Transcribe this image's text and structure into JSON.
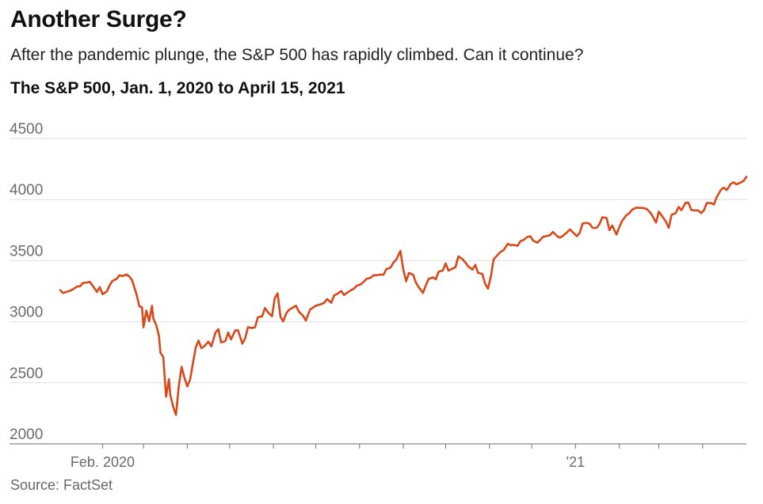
{
  "header": {
    "title": "Another Surge?",
    "subtitle": "After the pandemic plunge, the S&P 500 has rapidly climbed. Can it continue?",
    "chart_title": "The S&P 500, Jan. 1, 2020 to April 15, 2021"
  },
  "footer": {
    "source": "Source: FactSet"
  },
  "colors": {
    "line": "#d9481a",
    "grid": "#dedede",
    "axis": "#888888",
    "text": "#111111"
  },
  "chart_data": {
    "type": "line",
    "title": "The S&P 500, Jan. 1, 2020 to April 15, 2021",
    "xlabel": "",
    "ylabel": "",
    "ylim": [
      2000,
      4500
    ],
    "yticks": [
      2000,
      2500,
      3000,
      3500,
      4000,
      4500
    ],
    "xlim": [
      0,
      470
    ],
    "x_unit": "days since Jan. 1, 2020",
    "x_ticks": [
      31,
      60,
      91,
      121,
      152,
      182,
      213,
      244,
      274,
      305,
      335,
      366,
      397,
      425,
      456
    ],
    "x_tick_labels": [
      {
        "x": 31,
        "label": "Feb. 2020"
      },
      {
        "x": 366,
        "label": "'21"
      }
    ],
    "grid": true,
    "series": [
      {
        "name": "S&P 500",
        "points": [
          [
            1,
            3258
          ],
          [
            3,
            3235
          ],
          [
            6,
            3246
          ],
          [
            8,
            3254
          ],
          [
            10,
            3265
          ],
          [
            13,
            3288
          ],
          [
            15,
            3289
          ],
          [
            17,
            3317
          ],
          [
            20,
            3321
          ],
          [
            22,
            3326
          ],
          [
            24,
            3295
          ],
          [
            27,
            3244
          ],
          [
            29,
            3283
          ],
          [
            31,
            3225
          ],
          [
            34,
            3248
          ],
          [
            36,
            3298
          ],
          [
            38,
            3334
          ],
          [
            41,
            3352
          ],
          [
            43,
            3380
          ],
          [
            45,
            3373
          ],
          [
            48,
            3386
          ],
          [
            50,
            3370
          ],
          [
            52,
            3337
          ],
          [
            55,
            3226
          ],
          [
            57,
            3128
          ],
          [
            59,
            3116
          ],
          [
            60,
            2954
          ],
          [
            62,
            3090
          ],
          [
            64,
            3003
          ],
          [
            66,
            3130
          ],
          [
            67,
            3024
          ],
          [
            69,
            2972
          ],
          [
            71,
            2882
          ],
          [
            72,
            2746
          ],
          [
            74,
            2711
          ],
          [
            76,
            2386
          ],
          [
            78,
            2529
          ],
          [
            79,
            2398
          ],
          [
            81,
            2304
          ],
          [
            83,
            2237
          ],
          [
            85,
            2475
          ],
          [
            87,
            2630
          ],
          [
            89,
            2541
          ],
          [
            91,
            2470
          ],
          [
            93,
            2526
          ],
          [
            95,
            2660
          ],
          [
            97,
            2790
          ],
          [
            99,
            2846
          ],
          [
            101,
            2783
          ],
          [
            103,
            2799
          ],
          [
            106,
            2837
          ],
          [
            108,
            2797
          ],
          [
            111,
            2912
          ],
          [
            113,
            2939
          ],
          [
            115,
            2830
          ],
          [
            118,
            2842
          ],
          [
            120,
            2912
          ],
          [
            122,
            2855
          ],
          [
            125,
            2930
          ],
          [
            127,
            2929
          ],
          [
            130,
            2820
          ],
          [
            132,
            2863
          ],
          [
            134,
            2955
          ],
          [
            137,
            2948
          ],
          [
            139,
            2955
          ],
          [
            141,
            3036
          ],
          [
            144,
            3044
          ],
          [
            146,
            3112
          ],
          [
            148,
            3080
          ],
          [
            151,
            3044
          ],
          [
            153,
            3193
          ],
          [
            155,
            3232
          ],
          [
            157,
            3041
          ],
          [
            159,
            3002
          ],
          [
            161,
            3066
          ],
          [
            163,
            3097
          ],
          [
            166,
            3117
          ],
          [
            168,
            3131
          ],
          [
            170,
            3083
          ],
          [
            173,
            3050
          ],
          [
            175,
            3009
          ],
          [
            178,
            3100
          ],
          [
            180,
            3115
          ],
          [
            182,
            3130
          ],
          [
            186,
            3145
          ],
          [
            188,
            3155
          ],
          [
            190,
            3185
          ],
          [
            193,
            3155
          ],
          [
            195,
            3215
          ],
          [
            197,
            3226
          ],
          [
            200,
            3251
          ],
          [
            202,
            3218
          ],
          [
            204,
            3236
          ],
          [
            207,
            3258
          ],
          [
            209,
            3271
          ],
          [
            211,
            3294
          ],
          [
            214,
            3306
          ],
          [
            216,
            3327
          ],
          [
            218,
            3351
          ],
          [
            221,
            3360
          ],
          [
            223,
            3381
          ],
          [
            225,
            3380
          ],
          [
            228,
            3386
          ],
          [
            230,
            3385
          ],
          [
            232,
            3431
          ],
          [
            235,
            3443
          ],
          [
            237,
            3484
          ],
          [
            239,
            3508
          ],
          [
            242,
            3580
          ],
          [
            244,
            3426
          ],
          [
            246,
            3331
          ],
          [
            248,
            3399
          ],
          [
            251,
            3384
          ],
          [
            253,
            3319
          ],
          [
            255,
            3281
          ],
          [
            258,
            3236
          ],
          [
            260,
            3298
          ],
          [
            262,
            3351
          ],
          [
            265,
            3363
          ],
          [
            267,
            3348
          ],
          [
            269,
            3408
          ],
          [
            272,
            3420
          ],
          [
            274,
            3477
          ],
          [
            276,
            3419
          ],
          [
            279,
            3435
          ],
          [
            281,
            3446
          ],
          [
            283,
            3535
          ],
          [
            286,
            3512
          ],
          [
            288,
            3484
          ],
          [
            290,
            3453
          ],
          [
            293,
            3427
          ],
          [
            295,
            3465
          ],
          [
            297,
            3400
          ],
          [
            300,
            3390
          ],
          [
            302,
            3310
          ],
          [
            304,
            3271
          ],
          [
            306,
            3369
          ],
          [
            308,
            3510
          ],
          [
            311,
            3549
          ],
          [
            313,
            3573
          ],
          [
            315,
            3585
          ],
          [
            318,
            3638
          ],
          [
            320,
            3626
          ],
          [
            322,
            3629
          ],
          [
            325,
            3622
          ],
          [
            327,
            3660
          ],
          [
            329,
            3668
          ],
          [
            332,
            3694
          ],
          [
            334,
            3699
          ],
          [
            336,
            3663
          ],
          [
            339,
            3647
          ],
          [
            341,
            3669
          ],
          [
            343,
            3695
          ],
          [
            346,
            3703
          ],
          [
            348,
            3709
          ],
          [
            350,
            3735
          ],
          [
            353,
            3700
          ],
          [
            355,
            3688
          ],
          [
            357,
            3703
          ],
          [
            360,
            3732
          ],
          [
            362,
            3756
          ],
          [
            364,
            3733
          ],
          [
            367,
            3700
          ],
          [
            369,
            3727
          ],
          [
            371,
            3804
          ],
          [
            374,
            3809
          ],
          [
            376,
            3801
          ],
          [
            378,
            3768
          ],
          [
            381,
            3768
          ],
          [
            383,
            3800
          ],
          [
            385,
            3855
          ],
          [
            388,
            3849
          ],
          [
            390,
            3750
          ],
          [
            392,
            3787
          ],
          [
            395,
            3714
          ],
          [
            397,
            3774
          ],
          [
            399,
            3826
          ],
          [
            402,
            3871
          ],
          [
            404,
            3887
          ],
          [
            406,
            3916
          ],
          [
            409,
            3934
          ],
          [
            411,
            3932
          ],
          [
            413,
            3932
          ],
          [
            416,
            3925
          ],
          [
            418,
            3906
          ],
          [
            420,
            3876
          ],
          [
            423,
            3811
          ],
          [
            425,
            3901
          ],
          [
            427,
            3870
          ],
          [
            430,
            3820
          ],
          [
            432,
            3768
          ],
          [
            434,
            3875
          ],
          [
            437,
            3889
          ],
          [
            439,
            3939
          ],
          [
            441,
            3913
          ],
          [
            444,
            3975
          ],
          [
            446,
            3974
          ],
          [
            448,
            3915
          ],
          [
            451,
            3910
          ],
          [
            453,
            3910
          ],
          [
            455,
            3889
          ],
          [
            457,
            3913
          ],
          [
            459,
            3972
          ],
          [
            462,
            3971
          ],
          [
            464,
            3959
          ],
          [
            466,
            4020
          ],
          [
            469,
            4079
          ],
          [
            471,
            4097
          ],
          [
            473,
            4077
          ],
          [
            476,
            4128
          ],
          [
            478,
            4141
          ],
          [
            480,
            4124
          ],
          [
            483,
            4140
          ],
          [
            485,
            4152
          ],
          [
            487,
            4186
          ]
        ]
      }
    ]
  }
}
